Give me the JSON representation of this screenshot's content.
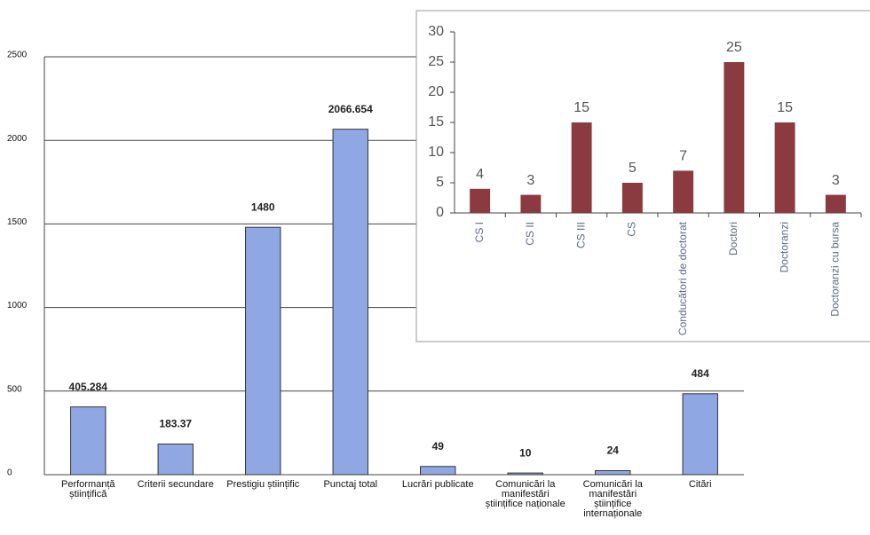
{
  "chart_data": [
    {
      "type": "bar",
      "categories": [
        "Performanță științifică",
        "Criterii secundare",
        "Prestigiu științific",
        "Punctaj total",
        "Lucrări publicate",
        "Comunicări la manifestări științifice naționale",
        "Comunicări la manifestări științifice internaționale",
        "Citări"
      ],
      "values": [
        405.284,
        183.37,
        1480,
        2066.654,
        49,
        10,
        24,
        484
      ],
      "color": "#8fa7e2",
      "ylim": [
        0,
        2500
      ],
      "yticks": [
        0,
        500,
        1000,
        1500,
        2000,
        2500
      ],
      "grid": true
    },
    {
      "type": "bar",
      "categories": [
        "CS I",
        "CS II",
        "CS III",
        "CS",
        "Conducători de doctorat",
        "Doctori",
        "Doctoranzi",
        "Doctoranzi cu bursa"
      ],
      "values": [
        4,
        3,
        15,
        5,
        7,
        25,
        15,
        3
      ],
      "color": "#8b3a40",
      "ylim": [
        0,
        30
      ],
      "yticks": [
        0,
        5,
        10,
        15,
        20,
        25,
        30
      ],
      "grid": false
    }
  ]
}
